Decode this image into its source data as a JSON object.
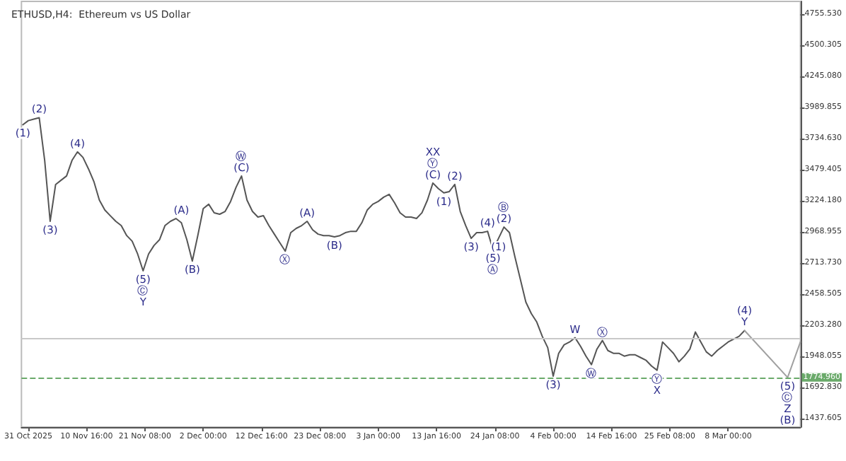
{
  "chart_data": {
    "type": "line",
    "title": "ETHUSD,H4:  Ethereum vs US Dollar",
    "x": [
      "2025-10-30",
      "2025-10-31",
      "2025-11-01",
      "2025-11-02",
      "2025-11-03",
      "2025-11-04",
      "2025-11-05",
      "2025-11-06",
      "2025-11-07",
      "2025-11-08",
      "2025-11-09",
      "2025-11-10",
      "2025-11-11",
      "2025-11-12",
      "2025-11-13",
      "2025-11-14",
      "2025-11-15",
      "2025-11-16",
      "2025-11-17",
      "2025-11-18",
      "2025-11-19",
      "2025-11-20",
      "2025-11-21",
      "2025-11-22",
      "2025-11-23",
      "2025-11-24",
      "2025-11-25",
      "2025-11-26",
      "2025-11-27",
      "2025-11-28",
      "2025-11-29",
      "2025-11-30",
      "2025-12-01",
      "2025-12-02",
      "2025-12-03",
      "2025-12-04",
      "2025-12-05",
      "2025-12-06",
      "2025-12-07",
      "2025-12-08",
      "2025-12-09",
      "2025-12-10",
      "2025-12-11",
      "2025-12-12",
      "2025-12-13",
      "2025-12-14",
      "2025-12-15",
      "2025-12-16",
      "2025-12-17",
      "2025-12-18",
      "2025-12-19",
      "2025-12-20",
      "2025-12-21",
      "2025-12-22",
      "2025-12-23",
      "2025-12-24",
      "2025-12-25",
      "2025-12-26",
      "2025-12-27",
      "2025-12-28",
      "2025-12-29",
      "2025-12-30",
      "2025-12-31",
      "2026-01-01",
      "2026-01-02",
      "2026-01-03",
      "2026-01-04",
      "2026-01-05",
      "2026-01-06",
      "2026-01-07",
      "2026-01-08",
      "2026-01-09",
      "2026-01-10",
      "2026-01-11",
      "2026-01-12",
      "2026-01-13",
      "2026-01-14",
      "2026-01-15",
      "2026-01-16",
      "2026-01-17",
      "2026-01-18",
      "2026-01-19",
      "2026-01-20",
      "2026-01-21",
      "2026-01-22",
      "2026-01-23",
      "2026-01-24",
      "2026-01-25",
      "2026-01-26",
      "2026-01-27",
      "2026-01-28",
      "2026-01-29",
      "2026-01-30",
      "2026-01-31",
      "2026-02-01",
      "2026-02-02",
      "2026-02-03",
      "2026-02-04",
      "2026-02-05",
      "2026-02-06",
      "2026-02-07",
      "2026-02-08",
      "2026-02-09",
      "2026-02-10",
      "2026-02-11",
      "2026-02-12",
      "2026-02-13",
      "2026-02-14",
      "2026-02-15",
      "2026-02-16",
      "2026-02-17",
      "2026-02-18",
      "2026-02-19",
      "2026-02-20",
      "2026-02-21",
      "2026-02-22",
      "2026-02-23",
      "2026-02-24",
      "2026-02-25",
      "2026-02-26",
      "2026-02-27",
      "2026-02-28",
      "2026-03-01",
      "2026-03-02",
      "2026-03-03",
      "2026-03-04",
      "2026-03-05",
      "2026-03-06",
      "2026-03-07",
      "2026-03-08",
      "2026-03-09",
      "2026-03-10",
      "2026-03-11"
    ],
    "series": [
      {
        "color": "#555555",
        "values": [
          3848,
          3882,
          3894,
          3906,
          3556,
          3056,
          3358,
          3393,
          3428,
          3556,
          3626,
          3580,
          3487,
          3382,
          3230,
          3149,
          3102,
          3056,
          3021,
          2939,
          2893,
          2788,
          2650,
          2788,
          2858,
          2905,
          3021,
          3056,
          3079,
          3044,
          2905,
          2730,
          2939,
          3160,
          3196,
          3126,
          3114,
          3137,
          3219,
          3335,
          3428,
          3230,
          3137,
          3091,
          3102,
          3021,
          2951,
          2881,
          2811,
          2963,
          2998,
          3021,
          3056,
          2986,
          2951,
          2939,
          2939,
          2928,
          2939,
          2963,
          2974,
          2974,
          3044,
          3149,
          3196,
          3219,
          3254,
          3277,
          3207,
          3126,
          3091,
          3091,
          3079,
          3126,
          3230,
          3370,
          3324,
          3289,
          3300,
          3359,
          3137,
          3021,
          2916,
          2963,
          2963,
          2974,
          2823,
          2916,
          3009,
          2963,
          2765,
          2579,
          2393,
          2299,
          2229,
          2113,
          2020,
          1785,
          1973,
          2043,
          2066,
          2101,
          2031,
          1950,
          1880,
          2008,
          2078,
          1996,
          1973,
          1973,
          1950,
          1961,
          1961,
          1938,
          1915,
          1868,
          1834,
          2066,
          2020,
          1973,
          1904,
          1950,
          2008,
          2148,
          2066,
          1985,
          1950,
          1996,
          2031,
          2066,
          2090,
          2113,
          2160
        ]
      },
      {
        "type": "line",
        "color": "#a0a0a0",
        "x": [
          "2026-03-11",
          "2026-03-18T21:00",
          "2026-03-21T05:00"
        ],
        "values": [
          2160,
          1775,
          2066
        ]
      }
    ],
    "xlim": [
      "2025-10-29T18:00",
      "2026-03-21T05:00"
    ],
    "xticks": [
      {
        "value": "2025-10-31T00:00",
        "label": "31 Oct 2025"
      },
      {
        "value": "2025-11-10T16:00",
        "label": "10 Nov 16:00"
      },
      {
        "value": "2025-11-21T08:00",
        "label": "21 Nov 08:00"
      },
      {
        "value": "2025-12-02T00:00",
        "label": "2 Dec 00:00"
      },
      {
        "value": "2025-12-12T16:00",
        "label": "12 Dec 16:00"
      },
      {
        "value": "2025-12-23T08:00",
        "label": "23 Dec 08:00"
      },
      {
        "value": "2026-01-03T00:00",
        "label": "3 Jan 00:00"
      },
      {
        "value": "2026-01-13T16:00",
        "label": "13 Jan 16:00"
      },
      {
        "value": "2026-01-24T08:00",
        "label": "24 Jan 08:00"
      },
      {
        "value": "2026-02-04T00:00",
        "label": "4 Feb 00:00"
      },
      {
        "value": "2026-02-14T16:00",
        "label": "14 Feb 16:00"
      },
      {
        "value": "2026-02-25T08:00",
        "label": "25 Feb 08:00"
      },
      {
        "value": "2026-03-08T00:00",
        "label": "8 Mar 00:00"
      }
    ],
    "ylim": [
      1368,
      4860
    ],
    "yticks": [
      {
        "value": 1437.605,
        "label": "1437.605"
      },
      {
        "value": 1692.83,
        "label": "1692.830"
      },
      {
        "value": 1948.055,
        "label": "1948.055"
      },
      {
        "value": 2203.28,
        "label": "2203.280"
      },
      {
        "value": 2458.505,
        "label": "2458.505"
      },
      {
        "value": 2713.73,
        "label": "2713.730"
      },
      {
        "value": 2968.955,
        "label": "2968.955"
      },
      {
        "value": 3224.18,
        "label": "3224.180"
      },
      {
        "value": 3479.405,
        "label": "3479.405"
      },
      {
        "value": 3734.63,
        "label": "3734.630"
      },
      {
        "value": 3989.855,
        "label": "3989.855"
      },
      {
        "value": 4245.08,
        "label": "4245.080"
      },
      {
        "value": 4500.305,
        "label": "4500.305"
      },
      {
        "value": 4755.53,
        "label": "4755.530"
      }
    ],
    "ref_lines": [
      {
        "axis": "y",
        "value": 2101,
        "color": "#c8c8c8",
        "line_style": "solid"
      },
      {
        "axis": "y",
        "value": 1774.96,
        "label": "1774.960",
        "color": "#6aaa6a",
        "line_style": "dashed"
      }
    ],
    "marker": "none",
    "line_style": "solid",
    "annotations": [
      {
        "text": "(1)",
        "x": "2025-10-30",
        "y": 3848
      },
      {
        "text": "(2)",
        "x": "2025-11-02",
        "y": 3906
      },
      {
        "text": "(3)",
        "x": "2025-11-04",
        "y": 3056
      },
      {
        "text": "(4)",
        "x": "2025-11-09",
        "y": 3626
      },
      {
        "text": "(5)\nⒸ\nY",
        "x": "2025-11-21",
        "y": 2650
      },
      {
        "text": "(A)",
        "x": "2025-11-28",
        "y": 3079
      },
      {
        "text": "(B)",
        "x": "2025-11-30",
        "y": 2730
      },
      {
        "text": "Ⓦ\n(C)",
        "x": "2025-12-09",
        "y": 3428
      },
      {
        "text": "Ⓧ",
        "x": "2025-12-17",
        "y": 2811
      },
      {
        "text": "(A)",
        "x": "2025-12-21",
        "y": 3056
      },
      {
        "text": "(B)",
        "x": "2025-12-26",
        "y": 2928
      },
      {
        "text": "XX\nⓎ\n(C)",
        "x": "2026-01-13",
        "y": 3370
      },
      {
        "text": "(1)",
        "x": "2026-01-15",
        "y": 3289
      },
      {
        "text": "(2)",
        "x": "2026-01-17",
        "y": 3359
      },
      {
        "text": "(3)",
        "x": "2026-01-20",
        "y": 2916
      },
      {
        "text": "(4)",
        "x": "2026-01-23",
        "y": 2974
      },
      {
        "text": "(5)\nⒶ",
        "x": "2026-01-24",
        "y": 2823
      },
      {
        "text": "(1)",
        "x": "2026-01-25",
        "y": 2916
      },
      {
        "text": "Ⓑ\n(2)",
        "x": "2026-01-26",
        "y": 3009
      },
      {
        "text": "(3)",
        "x": "2026-02-04",
        "y": 1785
      },
      {
        "text": "W",
        "x": "2026-02-08",
        "y": 2101
      },
      {
        "text": "Ⓦ",
        "x": "2026-02-11",
        "y": 1880
      },
      {
        "text": "Ⓧ",
        "x": "2026-02-13",
        "y": 2078
      },
      {
        "text": "Ⓨ\nX",
        "x": "2026-02-23",
        "y": 1834
      },
      {
        "text": "(4)\nY",
        "x": "2026-03-11",
        "y": 2160
      },
      {
        "text": "(5)\nⒸ\nZ\n(B)",
        "x": "2026-03-18T21:00",
        "y": 1775
      }
    ]
  }
}
